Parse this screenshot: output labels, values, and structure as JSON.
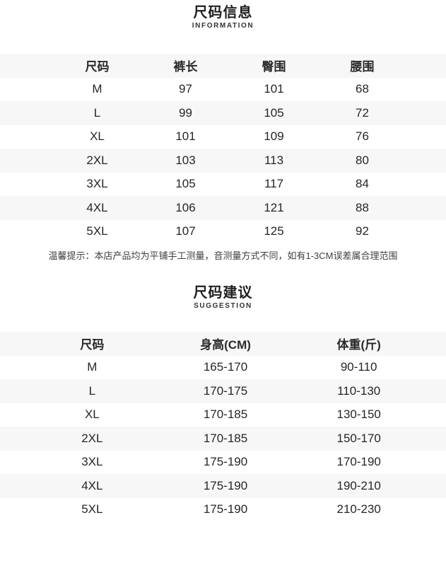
{
  "colors": {
    "background": "#ffffff",
    "row_stripe": "#f7f7f8",
    "text": "#262626"
  },
  "info": {
    "title": "尺码信息",
    "subtitle": "INFORMATION",
    "table": {
      "headers": [
        "尺码",
        "裤长",
        "臀围",
        "腰围"
      ],
      "rows": [
        [
          "M",
          "97",
          "101",
          "68"
        ],
        [
          "L",
          "99",
          "105",
          "72"
        ],
        [
          "XL",
          "101",
          "109",
          "76"
        ],
        [
          "2XL",
          "103",
          "113",
          "80"
        ],
        [
          "3XL",
          "105",
          "117",
          "84"
        ],
        [
          "4XL",
          "106",
          "121",
          "88"
        ],
        [
          "5XL",
          "107",
          "125",
          "92"
        ]
      ]
    },
    "note": "温馨提示：本店产品均为平铺手工测量，音测量方式不同，如有1-3CM误差属合理范围"
  },
  "suggestion": {
    "title": "尺码建议",
    "subtitle": "SUGGESTION",
    "table": {
      "headers": [
        "尺码",
        "身高(CM)",
        "体重(斤)"
      ],
      "rows": [
        [
          "M",
          "165-170",
          "90-110"
        ],
        [
          "L",
          "170-175",
          "110-130"
        ],
        [
          "XL",
          "170-185",
          "130-150"
        ],
        [
          "2XL",
          "170-185",
          "150-170"
        ],
        [
          "3XL",
          "175-190",
          "170-190"
        ],
        [
          "4XL",
          "175-190",
          "190-210"
        ],
        [
          "5XL",
          "175-190",
          "210-230"
        ]
      ]
    }
  }
}
